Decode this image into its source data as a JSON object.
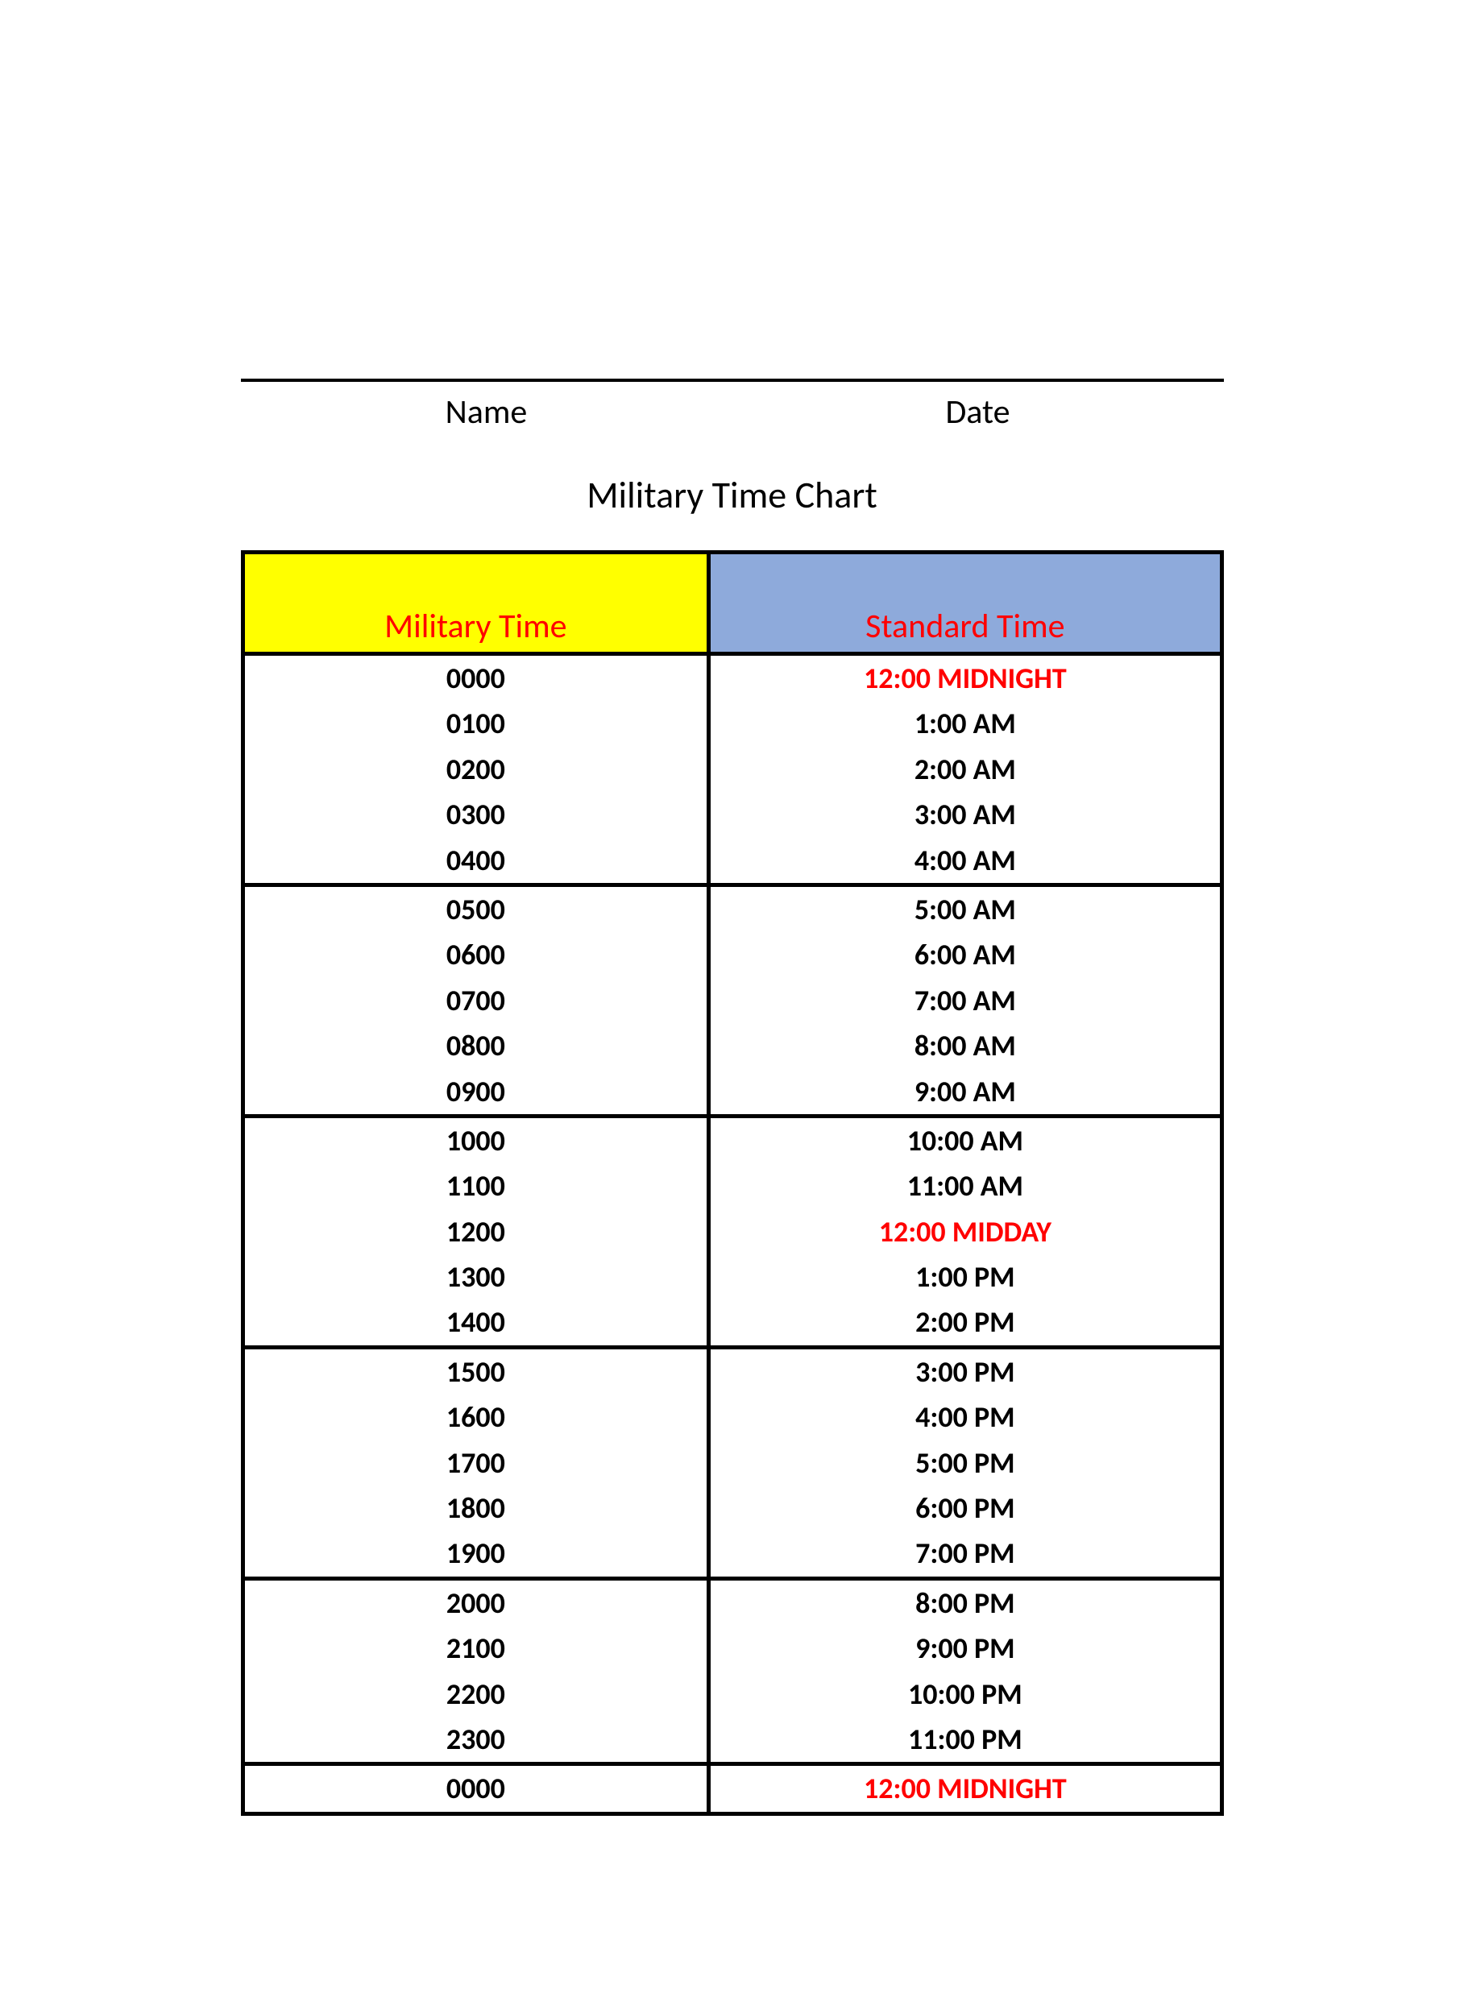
{
  "form": {
    "name_label": "Name",
    "date_label": "Date"
  },
  "title": "Military Time Chart",
  "headers": {
    "military": "Military Time",
    "standard": "Standard Time",
    "military_bg": "#ffff00",
    "standard_bg": "#8eaadb",
    "header_text_color": "#ff0000"
  },
  "highlight_color": "#ff0000",
  "groups": [
    [
      {
        "mil": "0000",
        "std": "12:00 MIDNIGHT",
        "highlight": true
      },
      {
        "mil": "0100",
        "std": "1:00 AM"
      },
      {
        "mil": "0200",
        "std": "2:00 AM"
      },
      {
        "mil": "0300",
        "std": "3:00 AM"
      },
      {
        "mil": "0400",
        "std": "4:00 AM"
      }
    ],
    [
      {
        "mil": "0500",
        "std": "5:00 AM"
      },
      {
        "mil": "0600",
        "std": "6:00 AM"
      },
      {
        "mil": "0700",
        "std": "7:00 AM"
      },
      {
        "mil": "0800",
        "std": "8:00 AM"
      },
      {
        "mil": "0900",
        "std": "9:00 AM"
      }
    ],
    [
      {
        "mil": "1000",
        "std": "10:00 AM"
      },
      {
        "mil": "1100",
        "std": "11:00 AM"
      },
      {
        "mil": "1200",
        "std": "12:00 MIDDAY",
        "highlight": true
      },
      {
        "mil": "1300",
        "std": "1:00 PM"
      },
      {
        "mil": "1400",
        "std": "2:00 PM"
      }
    ],
    [
      {
        "mil": "1500",
        "std": "3:00 PM"
      },
      {
        "mil": "1600",
        "std": "4:00 PM"
      },
      {
        "mil": "1700",
        "std": "5:00 PM"
      },
      {
        "mil": "1800",
        "std": "6:00 PM"
      },
      {
        "mil": "1900",
        "std": "7:00 PM"
      }
    ],
    [
      {
        "mil": "2000",
        "std": "8:00 PM"
      },
      {
        "mil": "2100",
        "std": "9:00 PM"
      },
      {
        "mil": "2200",
        "std": "10:00 PM"
      },
      {
        "mil": "2300",
        "std": "11:00 PM"
      }
    ],
    [
      {
        "mil": "0000",
        "std": "12:00 MIDNIGHT",
        "highlight": true
      }
    ]
  ]
}
